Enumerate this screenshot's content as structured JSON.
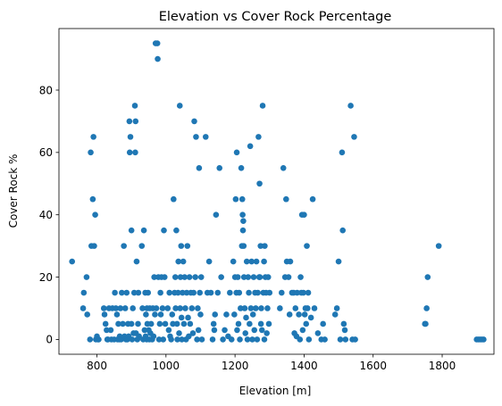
{
  "chart_data": {
    "type": "scatter",
    "title": "Elevation vs Cover Rock Percentage",
    "xlabel": "Elevation [m]",
    "ylabel": "Cover Rock %",
    "xlim": [
      690,
      1950
    ],
    "ylim": [
      -4.75,
      99.75
    ],
    "xticks": [
      800,
      1000,
      1200,
      1400,
      1600,
      1800
    ],
    "yticks": [
      0,
      20,
      40,
      60,
      80
    ],
    "grid": false,
    "marker_color": "#1f77b4",
    "points": [
      [
        728,
        25
      ],
      [
        760,
        10
      ],
      [
        762,
        15
      ],
      [
        770,
        20
      ],
      [
        772,
        8
      ],
      [
        780,
        0
      ],
      [
        782,
        60
      ],
      [
        784,
        30
      ],
      [
        788,
        45
      ],
      [
        790,
        65
      ],
      [
        792,
        30
      ],
      [
        795,
        40
      ],
      [
        797,
        0
      ],
      [
        800,
        1
      ],
      [
        803,
        0
      ],
      [
        805,
        0
      ],
      [
        820,
        10
      ],
      [
        822,
        8
      ],
      [
        825,
        5
      ],
      [
        828,
        3
      ],
      [
        830,
        0
      ],
      [
        832,
        0
      ],
      [
        835,
        10
      ],
      [
        840,
        3
      ],
      [
        842,
        0
      ],
      [
        845,
        10
      ],
      [
        850,
        0
      ],
      [
        852,
        15
      ],
      [
        855,
        10
      ],
      [
        858,
        8
      ],
      [
        860,
        0
      ],
      [
        862,
        5
      ],
      [
        865,
        0
      ],
      [
        866,
        1
      ],
      [
        868,
        10
      ],
      [
        870,
        0
      ],
      [
        872,
        15
      ],
      [
        875,
        5
      ],
      [
        878,
        30
      ],
      [
        880,
        1
      ],
      [
        882,
        10
      ],
      [
        884,
        0
      ],
      [
        886,
        15
      ],
      [
        888,
        0
      ],
      [
        890,
        5
      ],
      [
        892,
        1
      ],
      [
        894,
        70
      ],
      [
        895,
        60
      ],
      [
        897,
        65
      ],
      [
        900,
        5
      ],
      [
        900,
        35
      ],
      [
        902,
        0
      ],
      [
        904,
        10
      ],
      [
        906,
        2
      ],
      [
        908,
        15
      ],
      [
        910,
        75
      ],
      [
        911,
        60
      ],
      [
        912,
        70
      ],
      [
        913,
        2
      ],
      [
        915,
        25
      ],
      [
        917,
        0
      ],
      [
        919,
        5
      ],
      [
        920,
        15
      ],
      [
        922,
        1
      ],
      [
        930,
        30
      ],
      [
        932,
        10
      ],
      [
        934,
        0
      ],
      [
        936,
        35
      ],
      [
        938,
        3
      ],
      [
        940,
        15
      ],
      [
        941,
        1
      ],
      [
        942,
        8
      ],
      [
        944,
        0
      ],
      [
        945,
        10
      ],
      [
        946,
        5
      ],
      [
        948,
        15
      ],
      [
        950,
        3
      ],
      [
        952,
        0
      ],
      [
        953,
        10
      ],
      [
        955,
        2
      ],
      [
        957,
        5
      ],
      [
        960,
        0
      ],
      [
        962,
        10
      ],
      [
        964,
        1
      ],
      [
        966,
        20
      ],
      [
        968,
        8
      ],
      [
        970,
        95
      ],
      [
        972,
        10
      ],
      [
        975,
        95
      ],
      [
        976,
        90
      ],
      [
        978,
        20
      ],
      [
        980,
        0
      ],
      [
        982,
        5
      ],
      [
        984,
        15
      ],
      [
        985,
        8
      ],
      [
        987,
        20
      ],
      [
        990,
        10
      ],
      [
        992,
        0
      ],
      [
        994,
        35
      ],
      [
        996,
        20
      ],
      [
        998,
        5
      ],
      [
        1005,
        10
      ],
      [
        1008,
        3
      ],
      [
        1010,
        15
      ],
      [
        1012,
        1
      ],
      [
        1015,
        0
      ],
      [
        1018,
        8
      ],
      [
        1020,
        5
      ],
      [
        1022,
        45
      ],
      [
        1025,
        15
      ],
      [
        1027,
        20
      ],
      [
        1028,
        10
      ],
      [
        1030,
        35
      ],
      [
        1032,
        5
      ],
      [
        1033,
        0
      ],
      [
        1035,
        15
      ],
      [
        1036,
        25
      ],
      [
        1038,
        2
      ],
      [
        1040,
        75
      ],
      [
        1041,
        10
      ],
      [
        1042,
        20
      ],
      [
        1044,
        30
      ],
      [
        1045,
        7
      ],
      [
        1046,
        0
      ],
      [
        1048,
        15
      ],
      [
        1050,
        25
      ],
      [
        1052,
        5
      ],
      [
        1054,
        20
      ],
      [
        1056,
        10
      ],
      [
        1058,
        0
      ],
      [
        1060,
        15
      ],
      [
        1062,
        30
      ],
      [
        1064,
        7
      ],
      [
        1066,
        1
      ],
      [
        1068,
        20
      ],
      [
        1070,
        5
      ],
      [
        1072,
        15
      ],
      [
        1075,
        10
      ],
      [
        1078,
        2
      ],
      [
        1080,
        15
      ],
      [
        1082,
        70
      ],
      [
        1085,
        20
      ],
      [
        1087,
        65
      ],
      [
        1090,
        0
      ],
      [
        1092,
        10
      ],
      [
        1094,
        3
      ],
      [
        1096,
        55
      ],
      [
        1098,
        15
      ],
      [
        1100,
        8
      ],
      [
        1102,
        20
      ],
      [
        1104,
        0
      ],
      [
        1115,
        65
      ],
      [
        1120,
        15
      ],
      [
        1125,
        25
      ],
      [
        1130,
        15
      ],
      [
        1135,
        0
      ],
      [
        1138,
        5
      ],
      [
        1140,
        3
      ],
      [
        1142,
        8
      ],
      [
        1145,
        40
      ],
      [
        1150,
        15
      ],
      [
        1155,
        55
      ],
      [
        1160,
        20
      ],
      [
        1165,
        0
      ],
      [
        1170,
        3
      ],
      [
        1175,
        8
      ],
      [
        1180,
        1
      ],
      [
        1185,
        15
      ],
      [
        1190,
        0
      ],
      [
        1195,
        25
      ],
      [
        1198,
        8
      ],
      [
        1200,
        20
      ],
      [
        1202,
        45
      ],
      [
        1204,
        15
      ],
      [
        1205,
        60
      ],
      [
        1206,
        3
      ],
      [
        1208,
        20
      ],
      [
        1210,
        5
      ],
      [
        1212,
        15
      ],
      [
        1214,
        0
      ],
      [
        1216,
        10
      ],
      [
        1218,
        55
      ],
      [
        1220,
        30
      ],
      [
        1221,
        45
      ],
      [
        1222,
        40
      ],
      [
        1223,
        35
      ],
      [
        1224,
        38
      ],
      [
        1225,
        30
      ],
      [
        1226,
        20
      ],
      [
        1228,
        10
      ],
      [
        1230,
        2
      ],
      [
        1232,
        7
      ],
      [
        1234,
        25
      ],
      [
        1236,
        0
      ],
      [
        1238,
        20
      ],
      [
        1240,
        15
      ],
      [
        1242,
        5
      ],
      [
        1244,
        62
      ],
      [
        1246,
        10
      ],
      [
        1248,
        25
      ],
      [
        1250,
        0
      ],
      [
        1252,
        8
      ],
      [
        1254,
        20
      ],
      [
        1256,
        3
      ],
      [
        1258,
        15
      ],
      [
        1260,
        10
      ],
      [
        1262,
        25
      ],
      [
        1264,
        0
      ],
      [
        1266,
        15
      ],
      [
        1268,
        65
      ],
      [
        1270,
        20
      ],
      [
        1271,
        50
      ],
      [
        1272,
        20
      ],
      [
        1274,
        30
      ],
      [
        1275,
        5
      ],
      [
        1276,
        10
      ],
      [
        1278,
        3
      ],
      [
        1280,
        75
      ],
      [
        1282,
        15
      ],
      [
        1284,
        25
      ],
      [
        1285,
        0
      ],
      [
        1286,
        30
      ],
      [
        1288,
        20
      ],
      [
        1290,
        15
      ],
      [
        1292,
        2
      ],
      [
        1294,
        10
      ],
      [
        1296,
        20
      ],
      [
        1298,
        5
      ],
      [
        1300,
        15
      ],
      [
        1330,
        10
      ],
      [
        1335,
        15
      ],
      [
        1340,
        55
      ],
      [
        1345,
        20
      ],
      [
        1348,
        45
      ],
      [
        1350,
        25
      ],
      [
        1355,
        20
      ],
      [
        1358,
        8
      ],
      [
        1360,
        25
      ],
      [
        1365,
        15
      ],
      [
        1370,
        15
      ],
      [
        1372,
        2
      ],
      [
        1375,
        10
      ],
      [
        1378,
        1
      ],
      [
        1380,
        15
      ],
      [
        1385,
        8
      ],
      [
        1388,
        0
      ],
      [
        1390,
        20
      ],
      [
        1392,
        15
      ],
      [
        1394,
        40
      ],
      [
        1396,
        3
      ],
      [
        1398,
        15
      ],
      [
        1400,
        40
      ],
      [
        1402,
        8
      ],
      [
        1404,
        10
      ],
      [
        1406,
        5
      ],
      [
        1408,
        30
      ],
      [
        1410,
        10
      ],
      [
        1412,
        15
      ],
      [
        1414,
        0
      ],
      [
        1420,
        7
      ],
      [
        1425,
        45
      ],
      [
        1430,
        10
      ],
      [
        1440,
        2
      ],
      [
        1450,
        0
      ],
      [
        1455,
        5
      ],
      [
        1460,
        0
      ],
      [
        1490,
        8
      ],
      [
        1495,
        10
      ],
      [
        1500,
        25
      ],
      [
        1505,
        0
      ],
      [
        1510,
        60
      ],
      [
        1512,
        35
      ],
      [
        1515,
        5
      ],
      [
        1518,
        3
      ],
      [
        1520,
        0
      ],
      [
        1535,
        75
      ],
      [
        1540,
        0
      ],
      [
        1545,
        65
      ],
      [
        1548,
        0
      ],
      [
        1750,
        5
      ],
      [
        1752,
        5
      ],
      [
        1755,
        10
      ],
      [
        1758,
        20
      ],
      [
        1790,
        30
      ],
      [
        1900,
        0
      ],
      [
        1905,
        0
      ],
      [
        1910,
        0
      ],
      [
        1915,
        0
      ],
      [
        1920,
        0
      ]
    ]
  }
}
